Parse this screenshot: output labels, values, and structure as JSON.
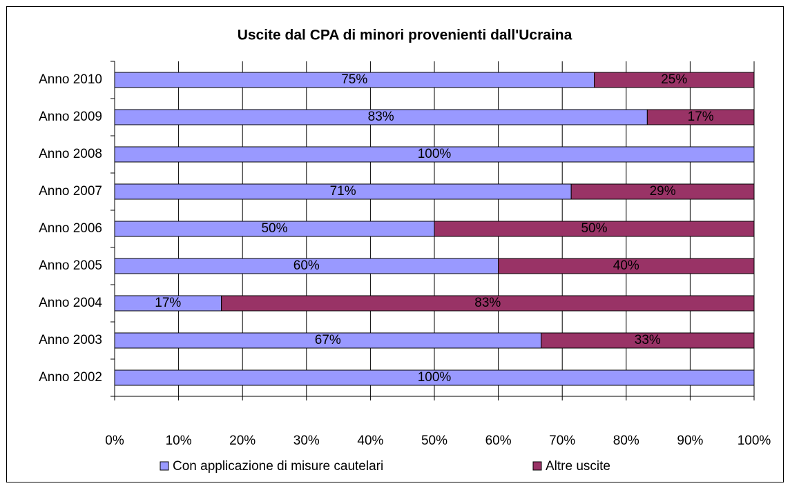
{
  "chart_data": {
    "type": "stacked-barh",
    "title": "Uscite dal CPA di minori provenienti dall'Ucraina",
    "categories": [
      "Anno 2010",
      "Anno 2009",
      "Anno 2008",
      "Anno 2007",
      "Anno 2006",
      "Anno 2005",
      "Anno 2004",
      "Anno 2003",
      "Anno 2002"
    ],
    "series": [
      {
        "name": "Con applicazione di misure cautelari",
        "color": "#9999ff",
        "values": [
          75,
          83.3,
          100,
          71.4,
          50,
          60,
          16.7,
          66.7,
          100
        ],
        "value_labels": [
          "75%",
          "83%",
          "100%",
          "71%",
          "50%",
          "60%",
          "17%",
          "67%",
          "100%"
        ]
      },
      {
        "name": "Altre uscite",
        "color": "#993366",
        "values": [
          25,
          16.7,
          0,
          28.6,
          50,
          40,
          83.3,
          33.3,
          0
        ],
        "value_labels": [
          "25%",
          "17%",
          null,
          "29%",
          "50%",
          "40%",
          "83%",
          "33%",
          null
        ]
      }
    ],
    "xlim": [
      0,
      100
    ],
    "xticks": [
      {
        "value": 0,
        "label": "0%"
      },
      {
        "value": 10,
        "label": "10%"
      },
      {
        "value": 20,
        "label": "20%"
      },
      {
        "value": 30,
        "label": "30%"
      },
      {
        "value": 40,
        "label": "40%"
      },
      {
        "value": 50,
        "label": "50%"
      },
      {
        "value": 60,
        "label": "60%"
      },
      {
        "value": 70,
        "label": "70%"
      },
      {
        "value": 80,
        "label": "80%"
      },
      {
        "value": 90,
        "label": "90%"
      },
      {
        "value": 100,
        "label": "100%"
      }
    ],
    "grid": true,
    "legend": "bottom"
  }
}
